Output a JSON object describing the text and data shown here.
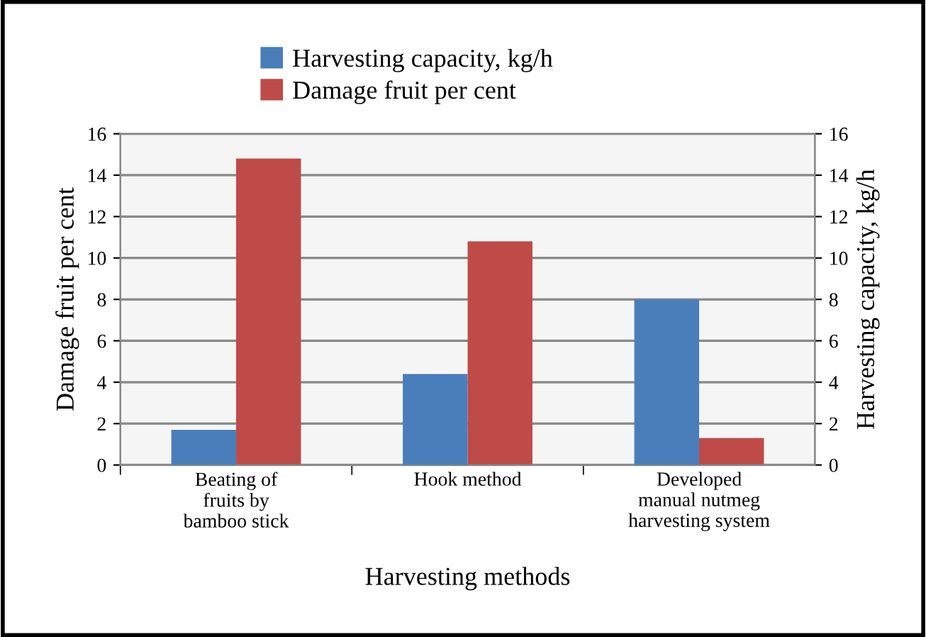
{
  "chart_data": {
    "type": "bar",
    "xlabel": "Harvesting methods",
    "ylabel": "Damage fruit per cent",
    "y2label": "Harvesting capacity, kg/h",
    "categories": [
      "Beating of\nfruits by\nbamboo stick",
      "Hook method",
      "Developed\nmanual nutmeg\nharvesting system"
    ],
    "series": [
      {
        "name": "Harvesting capacity, kg/h",
        "color": "#4a7ebb",
        "values": [
          1.7,
          4.4,
          8.0
        ],
        "axis": "y2"
      },
      {
        "name": "Damage fruit per cent",
        "color": "#be4b48",
        "values": [
          14.8,
          10.8,
          1.3
        ],
        "axis": "y"
      }
    ],
    "ylim": [
      0,
      16
    ],
    "yticks": [
      0,
      2,
      4,
      6,
      8,
      10,
      12,
      14,
      16
    ],
    "y2lim": [
      0,
      16
    ],
    "y2ticks": [
      0,
      2,
      4,
      6,
      8,
      10,
      12,
      14,
      16
    ],
    "grid": "y",
    "legend": "top"
  }
}
